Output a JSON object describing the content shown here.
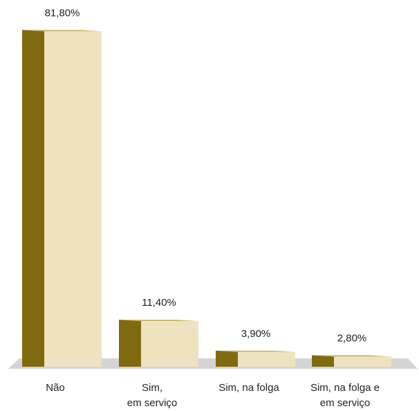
{
  "chart_data": {
    "type": "bar3d",
    "categories": [
      [
        "Não"
      ],
      [
        "Sim,",
        "em serviço"
      ],
      [
        "Sim, na folga"
      ],
      [
        "Sim, na folga e",
        "em serviço"
      ]
    ],
    "values": [
      81.8,
      11.4,
      3.9,
      2.8
    ],
    "value_labels": [
      "81,80%",
      "11,40%",
      "3,90%",
      "2,80%"
    ],
    "color": "#efe3bf",
    "side_color": "#806a10"
  }
}
